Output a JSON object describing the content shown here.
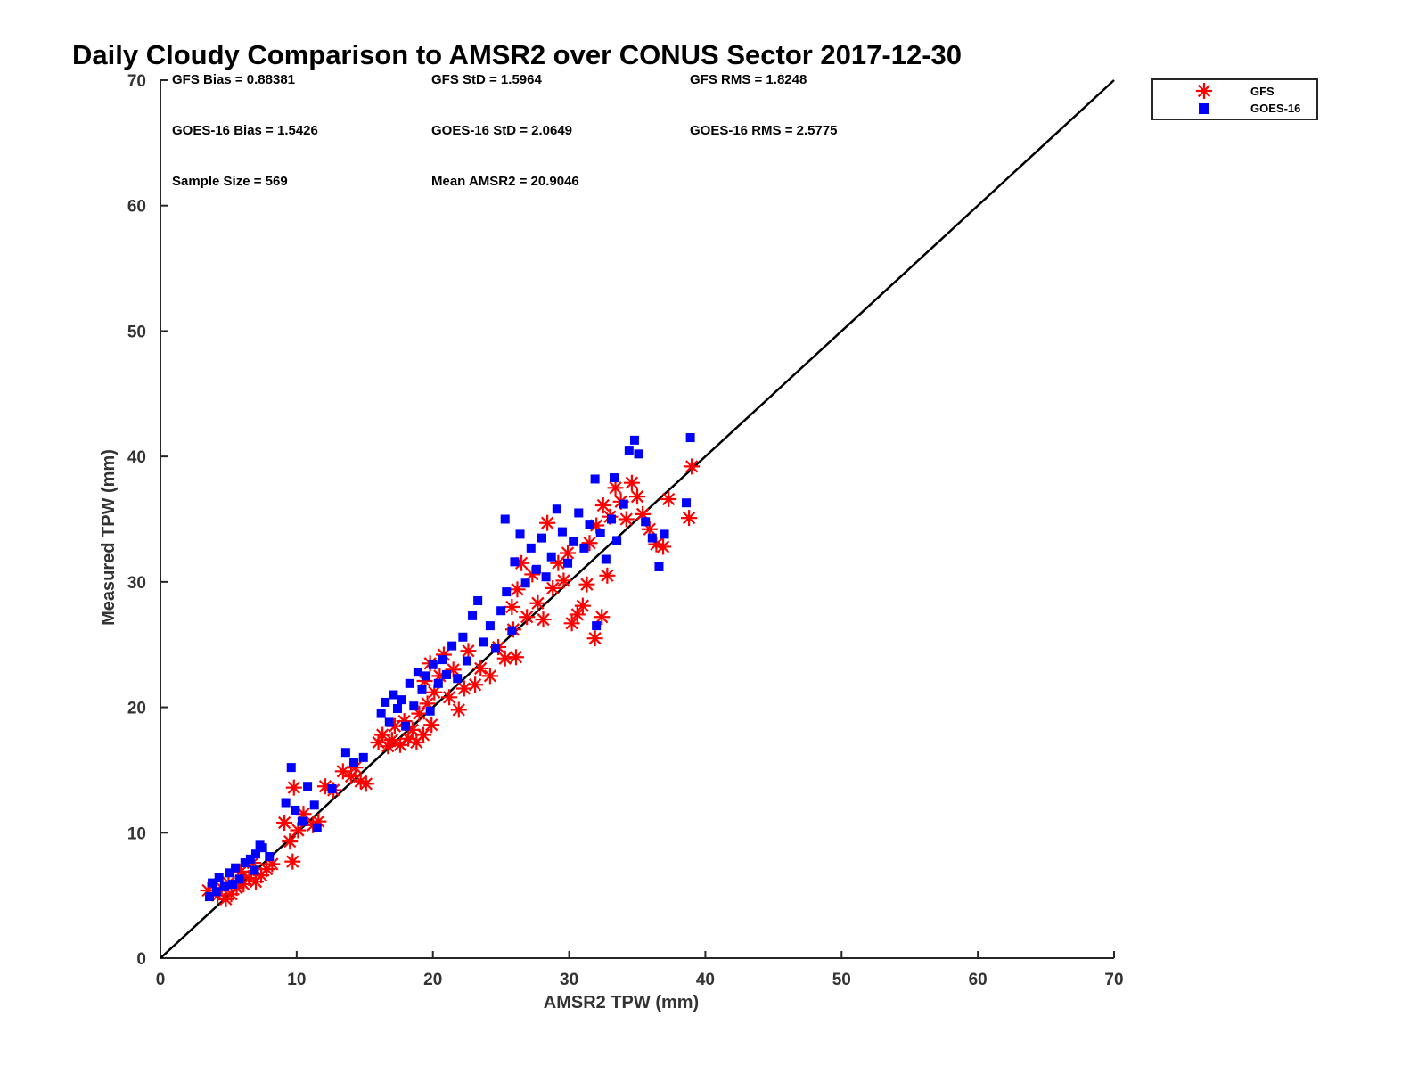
{
  "chart_data": {
    "type": "scatter",
    "title": "Daily Cloudy Comparison to AMSR2 over CONUS Sector 2017-12-30",
    "xlabel": "AMSR2 TPW (mm)",
    "ylabel": "Measured TPW (mm)",
    "xlim": [
      0,
      70
    ],
    "ylim": [
      0,
      70
    ],
    "xticks": [
      "0",
      "10",
      "20",
      "30",
      "40",
      "50",
      "60",
      "70"
    ],
    "yticks": [
      "0",
      "10",
      "20",
      "30",
      "40",
      "50",
      "60",
      "70"
    ],
    "grid": false,
    "legend_position": "top-right, outside plot",
    "reference_line": {
      "x": [
        0,
        70
      ],
      "y": [
        0,
        70
      ],
      "color": "#000000"
    },
    "stats": [
      {
        "text": "GFS Bias = 0.88381"
      },
      {
        "text": "GFS StD = 1.5964"
      },
      {
        "text": "GFS RMS = 1.8248"
      },
      {
        "text": "GOES-16 Bias = 1.5426"
      },
      {
        "text": "GOES-16 StD = 2.0649"
      },
      {
        "text": "GOES-16 RMS = 2.5775"
      },
      {
        "text": "Sample Size = 569"
      },
      {
        "text": "Mean AMSR2 = 20.9046"
      }
    ],
    "series": [
      {
        "name": "GFS",
        "marker": "asterisk",
        "color": "#ff0000",
        "points": [
          [
            3.5,
            5.4
          ],
          [
            4.2,
            5.0
          ],
          [
            4.8,
            4.7
          ],
          [
            5.2,
            5.1
          ],
          [
            5.6,
            5.6
          ],
          [
            6.1,
            5.9
          ],
          [
            6.5,
            6.4
          ],
          [
            7.0,
            6.1
          ],
          [
            7.4,
            6.6
          ],
          [
            7.8,
            7.1
          ],
          [
            8.2,
            7.5
          ],
          [
            4.5,
            5.6
          ],
          [
            5.0,
            6.0
          ],
          [
            5.9,
            6.9
          ],
          [
            6.8,
            7.6
          ],
          [
            9.1,
            10.8
          ],
          [
            9.5,
            9.3
          ],
          [
            9.7,
            7.7
          ],
          [
            9.8,
            13.6
          ],
          [
            10.5,
            11.5
          ],
          [
            11.2,
            10.6
          ],
          [
            11.6,
            10.9
          ],
          [
            12.1,
            13.7
          ],
          [
            12.7,
            13.4
          ],
          [
            10.1,
            10.2
          ],
          [
            13.4,
            14.9
          ],
          [
            14.0,
            14.5
          ],
          [
            14.3,
            15.2
          ],
          [
            14.7,
            14.1
          ],
          [
            15.1,
            13.9
          ],
          [
            16.0,
            17.2
          ],
          [
            16.3,
            17.8
          ],
          [
            16.7,
            16.9
          ],
          [
            17.0,
            17.4
          ],
          [
            17.2,
            18.5
          ],
          [
            17.6,
            17.0
          ],
          [
            17.9,
            18.9
          ],
          [
            18.2,
            17.5
          ],
          [
            18.5,
            18.2
          ],
          [
            18.8,
            17.2
          ],
          [
            19.0,
            19.5
          ],
          [
            19.3,
            17.8
          ],
          [
            19.6,
            20.3
          ],
          [
            19.9,
            18.6
          ],
          [
            20.1,
            21.2
          ],
          [
            19.4,
            22.1
          ],
          [
            19.8,
            23.5
          ],
          [
            20.5,
            22.5
          ],
          [
            20.8,
            24.2
          ],
          [
            21.2,
            20.8
          ],
          [
            21.5,
            23.0
          ],
          [
            21.9,
            19.8
          ],
          [
            22.3,
            21.5
          ],
          [
            22.6,
            24.5
          ],
          [
            23.1,
            21.8
          ],
          [
            23.5,
            23.1
          ],
          [
            24.2,
            22.5
          ],
          [
            24.8,
            24.8
          ],
          [
            25.3,
            23.9
          ],
          [
            25.9,
            26.2
          ],
          [
            26.1,
            24.0
          ],
          [
            25.8,
            28.0
          ],
          [
            26.2,
            29.4
          ],
          [
            26.5,
            31.5
          ],
          [
            26.9,
            27.2
          ],
          [
            27.3,
            30.6
          ],
          [
            27.7,
            28.3
          ],
          [
            28.1,
            27.0
          ],
          [
            28.4,
            34.7
          ],
          [
            28.8,
            29.5
          ],
          [
            29.2,
            31.5
          ],
          [
            29.6,
            30.1
          ],
          [
            29.9,
            32.3
          ],
          [
            30.2,
            26.7
          ],
          [
            30.6,
            27.4
          ],
          [
            31.0,
            28.1
          ],
          [
            31.3,
            29.8
          ],
          [
            31.9,
            25.5
          ],
          [
            32.4,
            27.2
          ],
          [
            32.8,
            30.5
          ],
          [
            31.5,
            33.1
          ],
          [
            32.0,
            34.5
          ],
          [
            32.5,
            36.1
          ],
          [
            33.0,
            35.2
          ],
          [
            33.4,
            37.5
          ],
          [
            33.8,
            36.4
          ],
          [
            34.2,
            35.0
          ],
          [
            34.6,
            37.9
          ],
          [
            35.0,
            36.8
          ],
          [
            35.4,
            35.4
          ],
          [
            35.9,
            34.2
          ],
          [
            36.4,
            33.0
          ],
          [
            36.9,
            32.8
          ],
          [
            37.3,
            36.6
          ],
          [
            38.8,
            35.1
          ],
          [
            39.0,
            39.2
          ]
        ]
      },
      {
        "name": "GOES-16",
        "marker": "square",
        "color": "#0000ff",
        "points": [
          [
            3.8,
            6.0
          ],
          [
            4.3,
            6.4
          ],
          [
            4.7,
            5.7
          ],
          [
            5.1,
            6.8
          ],
          [
            5.5,
            7.2
          ],
          [
            5.8,
            6.3
          ],
          [
            6.2,
            7.6
          ],
          [
            6.6,
            7.9
          ],
          [
            7.0,
            8.3
          ],
          [
            7.5,
            8.8
          ],
          [
            8.0,
            8.1
          ],
          [
            3.6,
            4.9
          ],
          [
            4.1,
            5.3
          ],
          [
            5.3,
            5.9
          ],
          [
            6.9,
            7.0
          ],
          [
            7.3,
            9.0
          ],
          [
            9.2,
            12.4
          ],
          [
            9.6,
            15.2
          ],
          [
            9.9,
            11.8
          ],
          [
            10.4,
            10.9
          ],
          [
            10.8,
            13.7
          ],
          [
            11.3,
            12.2
          ],
          [
            11.5,
            10.4
          ],
          [
            12.6,
            13.5
          ],
          [
            13.6,
            16.4
          ],
          [
            14.2,
            15.6
          ],
          [
            14.9,
            16.0
          ],
          [
            16.2,
            19.5
          ],
          [
            16.5,
            20.4
          ],
          [
            16.8,
            18.8
          ],
          [
            17.1,
            21.0
          ],
          [
            17.4,
            19.9
          ],
          [
            17.7,
            20.6
          ],
          [
            18.0,
            18.5
          ],
          [
            18.3,
            21.9
          ],
          [
            18.6,
            20.1
          ],
          [
            18.9,
            22.8
          ],
          [
            19.2,
            21.4
          ],
          [
            19.5,
            22.5
          ],
          [
            19.8,
            19.7
          ],
          [
            20.0,
            23.4
          ],
          [
            20.4,
            21.9
          ],
          [
            20.7,
            23.8
          ],
          [
            21.0,
            22.6
          ],
          [
            21.4,
            24.9
          ],
          [
            21.8,
            22.3
          ],
          [
            22.2,
            25.6
          ],
          [
            22.5,
            23.7
          ],
          [
            22.9,
            27.3
          ],
          [
            23.3,
            28.5
          ],
          [
            23.7,
            25.2
          ],
          [
            24.2,
            26.5
          ],
          [
            24.6,
            24.7
          ],
          [
            25.0,
            27.7
          ],
          [
            25.4,
            29.2
          ],
          [
            25.8,
            26.1
          ],
          [
            25.3,
            35.0
          ],
          [
            26.0,
            31.6
          ],
          [
            26.4,
            33.8
          ],
          [
            26.8,
            29.9
          ],
          [
            27.2,
            32.7
          ],
          [
            27.6,
            31.0
          ],
          [
            28.0,
            33.5
          ],
          [
            28.3,
            30.4
          ],
          [
            28.7,
            32.0
          ],
          [
            29.1,
            35.8
          ],
          [
            29.5,
            34.0
          ],
          [
            29.9,
            31.5
          ],
          [
            30.3,
            33.2
          ],
          [
            30.7,
            35.5
          ],
          [
            31.1,
            32.7
          ],
          [
            31.5,
            34.6
          ],
          [
            31.9,
            38.2
          ],
          [
            32.3,
            33.9
          ],
          [
            32.7,
            31.8
          ],
          [
            33.1,
            35.0
          ],
          [
            33.5,
            33.3
          ],
          [
            34.0,
            36.2
          ],
          [
            34.4,
            40.5
          ],
          [
            34.8,
            41.3
          ],
          [
            35.1,
            40.2
          ],
          [
            35.6,
            34.8
          ],
          [
            36.1,
            33.5
          ],
          [
            36.6,
            31.2
          ],
          [
            37.0,
            33.8
          ],
          [
            38.6,
            36.3
          ],
          [
            38.9,
            41.5
          ],
          [
            32.0,
            26.5
          ],
          [
            33.3,
            38.3
          ]
        ]
      }
    ]
  }
}
